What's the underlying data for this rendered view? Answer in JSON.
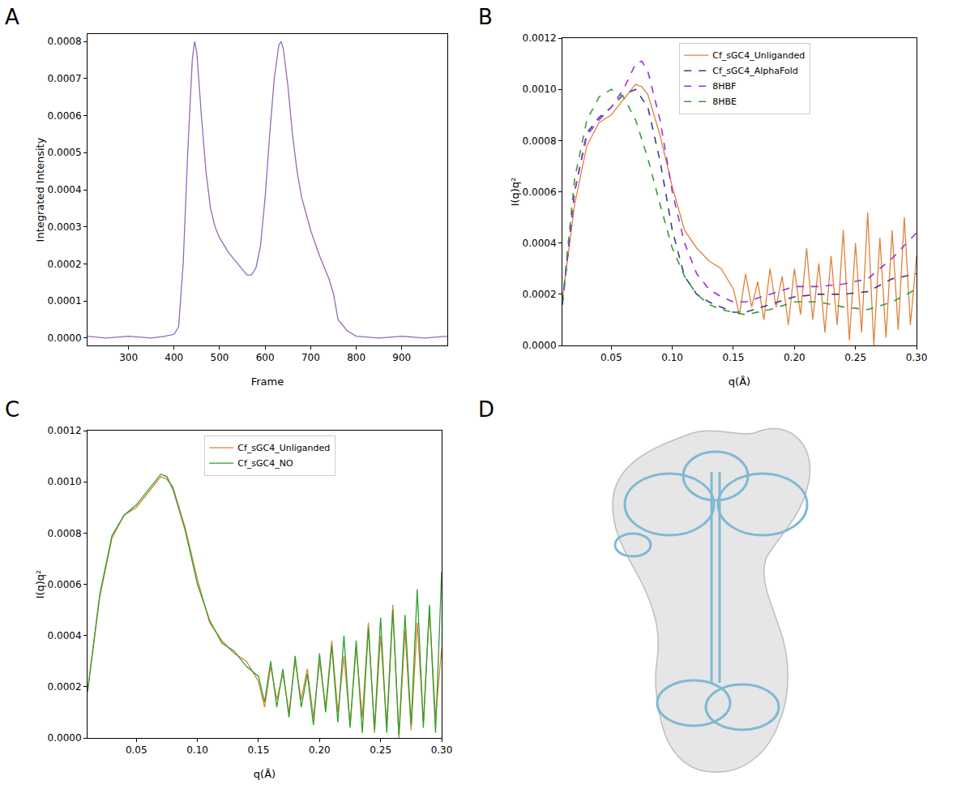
{
  "chart_data": [
    {
      "type": "line",
      "panel": "A",
      "x_label": "Frame",
      "y_label": "Integrated Intensity",
      "xlim": [
        210,
        1000
      ],
      "xticks": [
        300,
        400,
        500,
        600,
        700,
        800,
        900
      ],
      "ylim": [
        -2e-05,
        0.00082
      ],
      "yticks": [
        {
          "value": 0,
          "label": "0.0000"
        },
        0.0001,
        0.0002,
        0.0003,
        0.0004,
        0.0005,
        0.0006,
        0.0007,
        0.0008
      ],
      "grid": false,
      "series": [
        {
          "color": "#9467bd",
          "line_style": "solid",
          "x": [
            210,
            250,
            300,
            350,
            380,
            400,
            410,
            420,
            430,
            440,
            445,
            450,
            460,
            470,
            480,
            490,
            500,
            520,
            540,
            560,
            570,
            580,
            590,
            600,
            610,
            620,
            630,
            635,
            640,
            650,
            660,
            670,
            680,
            700,
            720,
            740,
            750,
            760,
            780,
            800,
            850,
            900,
            950,
            1000
          ],
          "values": [
            5e-06,
            0,
            5e-06,
            0,
            5e-06,
            1e-05,
            3e-05,
            0.0002,
            0.0005,
            0.00075,
            0.0008,
            0.00077,
            0.0006,
            0.00045,
            0.00035,
            0.0003,
            0.00027,
            0.00023,
            0.0002,
            0.00017,
            0.00017,
            0.00019,
            0.00025,
            0.00038,
            0.00055,
            0.0007,
            0.00079,
            0.0008,
            0.00078,
            0.00068,
            0.00055,
            0.00045,
            0.00038,
            0.00029,
            0.00022,
            0.00016,
            0.00012,
            5e-05,
            2e-05,
            5e-06,
            0,
            5e-06,
            0,
            5e-06
          ]
        }
      ]
    },
    {
      "type": "line",
      "panel": "B",
      "x_label": "q(Å)",
      "y_label": "I(q)q²",
      "xlim": [
        0.01,
        0.3
      ],
      "xticks": [
        0.05,
        {
          "value": 0.1,
          "label": "0.10"
        },
        0.15,
        {
          "value": 0.2,
          "label": "0.20"
        },
        0.25,
        {
          "value": 0.3,
          "label": "0.30"
        }
      ],
      "ylim": [
        0,
        0.0012
      ],
      "yticks": [
        {
          "value": 0,
          "label": "0.0000"
        },
        0.0002,
        0.0004,
        0.0006,
        0.0008,
        {
          "value": 0.001,
          "label": "0.0010"
        },
        0.0012
      ],
      "grid": false,
      "legend": "top",
      "series": [
        {
          "name": "Cf_sGC4_Unliganded",
          "color": "#e0823a",
          "line_style": "solid",
          "x": [
            0.01,
            0.02,
            0.03,
            0.04,
            0.05,
            0.06,
            0.07,
            0.075,
            0.08,
            0.09,
            0.1,
            0.11,
            0.12,
            0.13,
            0.14,
            0.15,
            0.155,
            0.16,
            0.165,
            0.17,
            0.175,
            0.18,
            0.185,
            0.19,
            0.195,
            0.2,
            0.205,
            0.21,
            0.215,
            0.22,
            0.225,
            0.23,
            0.235,
            0.24,
            0.245,
            0.25,
            0.255,
            0.26,
            0.265,
            0.27,
            0.275,
            0.28,
            0.285,
            0.29,
            0.295,
            0.3
          ],
          "values": [
            0.00018,
            0.00055,
            0.00078,
            0.00087,
            0.0009,
            0.00096,
            0.00102,
            0.00101,
            0.00098,
            0.00082,
            0.00062,
            0.00045,
            0.00038,
            0.00033,
            0.0003,
            0.00022,
            0.00012,
            0.00028,
            0.00015,
            0.00025,
            0.0001,
            0.0003,
            0.00015,
            0.00027,
            8e-05,
            0.0003,
            0.00012,
            0.00038,
            0.0001,
            0.00032,
            5e-05,
            0.00035,
            8e-05,
            0.00045,
            2e-05,
            0.0004,
            5e-05,
            0.00052,
            0,
            0.00042,
            3e-05,
            0.00045,
            6e-05,
            0.0005,
            8e-05,
            0.00035
          ]
        },
        {
          "name": "Cf_sGC4_AlphaFold",
          "color": "#3b3b8f",
          "line_style": "dash",
          "x": [
            0.01,
            0.02,
            0.03,
            0.04,
            0.05,
            0.06,
            0.07,
            0.08,
            0.09,
            0.1,
            0.11,
            0.12,
            0.13,
            0.14,
            0.15,
            0.16,
            0.18,
            0.2,
            0.22,
            0.24,
            0.26,
            0.28,
            0.3
          ],
          "values": [
            0.00016,
            0.0006,
            0.00083,
            0.00089,
            0.00093,
            0.00098,
            0.001,
            0.00093,
            0.00072,
            0.00045,
            0.00027,
            0.0002,
            0.00017,
            0.00015,
            0.00013,
            0.00013,
            0.00016,
            0.00019,
            0.0002,
            0.0002,
            0.00021,
            0.00026,
            0.00028
          ]
        },
        {
          "name": "8HBF",
          "color": "#9b30d9",
          "line_style": "dash",
          "x": [
            0.01,
            0.02,
            0.03,
            0.04,
            0.05,
            0.06,
            0.07,
            0.075,
            0.08,
            0.09,
            0.1,
            0.11,
            0.12,
            0.13,
            0.14,
            0.15,
            0.16,
            0.18,
            0.2,
            0.22,
            0.24,
            0.26,
            0.28,
            0.3
          ],
          "values": [
            0.00016,
            0.0006,
            0.00082,
            0.00088,
            0.00093,
            0.001,
            0.0011,
            0.00111,
            0.00107,
            0.00088,
            0.0006,
            0.0004,
            0.00028,
            0.00022,
            0.00019,
            0.00017,
            0.00017,
            0.0002,
            0.00023,
            0.00023,
            0.00024,
            0.00026,
            0.00034,
            0.00044
          ]
        },
        {
          "name": "8HBE",
          "color": "#3a9a3a",
          "line_style": "dash",
          "x": [
            0.01,
            0.02,
            0.03,
            0.04,
            0.05,
            0.06,
            0.07,
            0.08,
            0.09,
            0.1,
            0.11,
            0.12,
            0.13,
            0.14,
            0.15,
            0.16,
            0.18,
            0.2,
            0.22,
            0.24,
            0.26,
            0.28,
            0.3
          ],
          "values": [
            0.00017,
            0.00065,
            0.00088,
            0.00097,
            0.001,
            0.00097,
            0.00088,
            0.00073,
            0.00055,
            0.00038,
            0.00027,
            0.0002,
            0.00016,
            0.00014,
            0.00013,
            0.00012,
            0.00014,
            0.00017,
            0.00017,
            0.00015,
            0.00014,
            0.00017,
            0.00022
          ]
        }
      ]
    },
    {
      "type": "line",
      "panel": "C",
      "x_label": "q(Å)",
      "y_label": "I(q)q²",
      "xlim": [
        0.01,
        0.3
      ],
      "xticks": [
        0.05,
        {
          "value": 0.1,
          "label": "0.10"
        },
        0.15,
        {
          "value": 0.2,
          "label": "0.20"
        },
        0.25,
        {
          "value": 0.3,
          "label": "0.30"
        }
      ],
      "ylim": [
        0,
        0.0012
      ],
      "yticks": [
        {
          "value": 0,
          "label": "0.0000"
        },
        0.0002,
        0.0004,
        0.0006,
        0.0008,
        {
          "value": 0.001,
          "label": "0.0010"
        },
        0.0012
      ],
      "grid": false,
      "legend": "top",
      "series": [
        {
          "name": "Cf_sGC4_Unliganded",
          "color": "#e0823a",
          "line_style": "solid",
          "x": [
            0.01,
            0.02,
            0.03,
            0.04,
            0.05,
            0.06,
            0.07,
            0.075,
            0.08,
            0.09,
            0.1,
            0.11,
            0.12,
            0.13,
            0.14,
            0.15,
            0.155,
            0.16,
            0.165,
            0.17,
            0.175,
            0.18,
            0.185,
            0.19,
            0.195,
            0.2,
            0.205,
            0.21,
            0.215,
            0.22,
            0.225,
            0.23,
            0.235,
            0.24,
            0.245,
            0.25,
            0.255,
            0.26,
            0.265,
            0.27,
            0.275,
            0.28,
            0.285,
            0.29,
            0.295,
            0.3
          ],
          "values": [
            0.00018,
            0.00055,
            0.00078,
            0.00087,
            0.0009,
            0.00096,
            0.00102,
            0.00101,
            0.00098,
            0.00082,
            0.00062,
            0.00045,
            0.00038,
            0.00033,
            0.0003,
            0.00022,
            0.00012,
            0.00028,
            0.00015,
            0.00025,
            0.0001,
            0.0003,
            0.00015,
            0.00027,
            8e-05,
            0.0003,
            0.00012,
            0.00038,
            0.0001,
            0.00032,
            5e-05,
            0.00035,
            8e-05,
            0.00045,
            2e-05,
            0.0004,
            5e-05,
            0.00052,
            0,
            0.00042,
            3e-05,
            0.00045,
            6e-05,
            0.0005,
            8e-05,
            0.00035
          ]
        },
        {
          "name": "Cf_sGC4_NO",
          "color": "#2ca02c",
          "line_style": "solid",
          "x": [
            0.01,
            0.02,
            0.03,
            0.04,
            0.05,
            0.06,
            0.07,
            0.075,
            0.08,
            0.09,
            0.1,
            0.11,
            0.12,
            0.13,
            0.14,
            0.15,
            0.155,
            0.16,
            0.165,
            0.17,
            0.175,
            0.18,
            0.185,
            0.19,
            0.195,
            0.2,
            0.205,
            0.21,
            0.215,
            0.22,
            0.225,
            0.23,
            0.235,
            0.24,
            0.245,
            0.25,
            0.255,
            0.26,
            0.265,
            0.27,
            0.275,
            0.28,
            0.285,
            0.29,
            0.295,
            0.3
          ],
          "values": [
            0.00018,
            0.00056,
            0.00079,
            0.00087,
            0.00091,
            0.00097,
            0.00103,
            0.00102,
            0.00097,
            0.00081,
            0.0006,
            0.00046,
            0.00037,
            0.00034,
            0.00028,
            0.00024,
            0.00014,
            0.0003,
            0.00012,
            0.00027,
            8e-05,
            0.00032,
            0.00012,
            0.00025,
            5e-05,
            0.00033,
            0.0001,
            0.00036,
            6e-05,
            0.0004,
            4e-05,
            0.00038,
            2e-05,
            0.00043,
            3e-05,
            0.00047,
            2e-05,
            0.0005,
            1e-05,
            0.00048,
            5e-05,
            0.00058,
            4e-05,
            0.00052,
            2e-05,
            0.00065
          ]
        }
      ]
    },
    {
      "type": "structure",
      "panel": "D"
    }
  ]
}
